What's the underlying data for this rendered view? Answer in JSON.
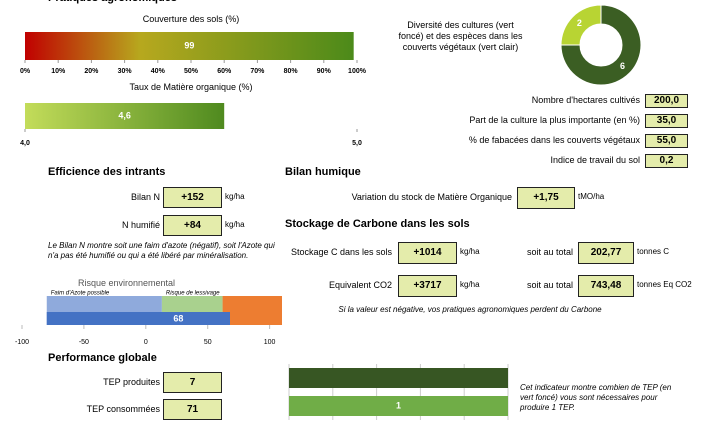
{
  "header": {
    "title": "Pratiques agronomiques"
  },
  "soil_cover": {
    "type": "bar",
    "title": "Couverture des sols (%)",
    "value": 99,
    "value_label": "99",
    "xlim": [
      0,
      100
    ],
    "xticks": [
      {
        "value": 0,
        "label": "0%"
      },
      {
        "value": 10,
        "label": "10%"
      },
      {
        "value": 20,
        "label": "20%"
      },
      {
        "value": 30,
        "label": "30%"
      },
      {
        "value": 40,
        "label": "40%"
      },
      {
        "value": 50,
        "label": "50%"
      },
      {
        "value": 60,
        "label": "60%"
      },
      {
        "value": 70,
        "label": "70%"
      },
      {
        "value": 80,
        "label": "80%"
      },
      {
        "value": 90,
        "label": "90%"
      },
      {
        "value": 100,
        "label": "100%"
      }
    ]
  },
  "organic_matter": {
    "type": "bar",
    "title": "Taux de Matière organique (%)",
    "value": 4.6,
    "value_label": "4,6",
    "xlim": [
      4,
      5
    ],
    "xticks": [
      {
        "value": 4,
        "label": "4,0"
      },
      {
        "value": 5,
        "label": "5,0"
      }
    ]
  },
  "diversity": {
    "type": "pie",
    "title": "Diversité des cultures (vert foncé) et des espèces dans les couverts végétaux (vert clair)",
    "values": [
      6,
      2
    ],
    "colors": [
      "#3b5e23",
      "#b8d433"
    ]
  },
  "indicators": [
    {
      "label": "Nombre d'hectares cultivés",
      "value": "200,0"
    },
    {
      "label": "Part de la culture la plus importante (en %)",
      "value": "35,0"
    },
    {
      "label": "% de fabacées dans les couverts végétaux",
      "value": "55,0"
    },
    {
      "label": "Indice de travail du sol",
      "value": "0,2"
    }
  ],
  "inputs": {
    "title": "Efficience des intrants",
    "rows": [
      {
        "label": "Bilan N",
        "value": "+152",
        "unit": "kg/ha"
      },
      {
        "label": "N humifié",
        "value": "+84",
        "unit": "kg/ha"
      }
    ],
    "note": "Le Bilan N montre soit une faim d'azote (négatif), soit l'Azote qui n'a pas été humifié ou qui a été libéré par minéralisation."
  },
  "humus": {
    "title": "Bilan humique",
    "rows": [
      {
        "label": "Variation du stock de Matière Organique",
        "value": "+1,75",
        "unit": "tMO/ha"
      }
    ]
  },
  "carbon": {
    "title": "Stockage de Carbone dans les sols",
    "rows": [
      {
        "label": "Stockage C dans les sols",
        "value": "+1014",
        "unit": "kg/ha",
        "total_label": "soit au total",
        "total": "202,77",
        "total_unit": "tonnes C"
      },
      {
        "label": "Equivalent CO2",
        "value": "+3717",
        "unit": "kg/ha",
        "total_label": "soit au total",
        "total": "743,48",
        "total_unit": "tonnes Eq CO2"
      }
    ],
    "note": "Si la valeur est négative, vos pratiques agronomiques perdent du Carbone"
  },
  "risk": {
    "type": "bar",
    "title": "Risque environnemental",
    "value": 68,
    "color": "#4472c4",
    "xlim": [
      -100,
      110
    ],
    "xticks": [
      -100,
      -50,
      0,
      50,
      100
    ],
    "zones": [
      {
        "label": "Faim d'Azote possible",
        "from": -80,
        "to": 13,
        "color": "#8faadc"
      },
      {
        "label": "Risque de lessivage",
        "from": 13,
        "to": 62,
        "color": "#a9d18e"
      },
      {
        "from": 62,
        "to": 110,
        "color": "#ed7d31"
      }
    ]
  },
  "performance": {
    "title": "Performance globale",
    "rows": [
      {
        "label": "TEP produites",
        "value": "7"
      },
      {
        "label": "TEP consommées",
        "value": "71"
      }
    ],
    "chart": {
      "type": "bar",
      "values": [
        1,
        1
      ],
      "value_labels": [
        null,
        "1"
      ],
      "colors": [
        "#375623",
        "#70ad47"
      ],
      "xlim": [
        0,
        1
      ],
      "xticks": [
        0,
        0.2,
        0.4,
        0.6,
        0.8,
        1
      ],
      "grid": true
    },
    "note": "Cet indicateur montre combien de TEP (en vert foncé) vous sont nécessaires pour produire 1 TEP."
  }
}
